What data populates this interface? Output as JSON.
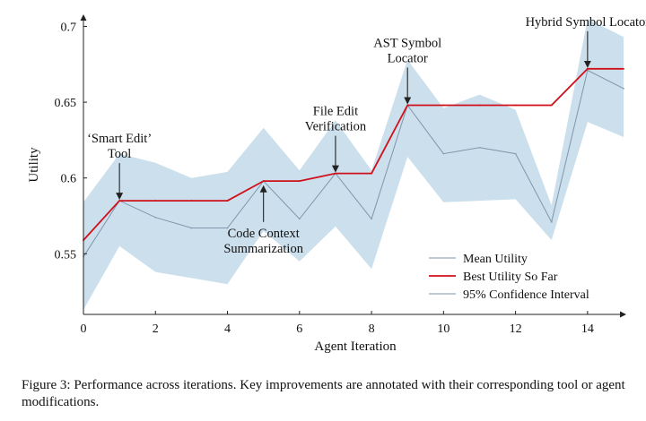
{
  "chart_data": {
    "type": "line",
    "xlabel": "Agent Iteration",
    "ylabel": "Utility",
    "xlim": [
      0,
      15
    ],
    "ylim": [
      0.51,
      0.705
    ],
    "xticks": [
      0,
      2,
      4,
      6,
      8,
      10,
      12,
      14
    ],
    "xtick_labels": [
      "0",
      "2",
      "4",
      "6",
      "8",
      "10",
      "12",
      "14"
    ],
    "yticks": [
      0.55,
      0.6,
      0.65,
      0.7
    ],
    "ytick_labels": [
      "0.55",
      "0.6",
      "0.65",
      "0.7"
    ],
    "grid": false,
    "legend_position": "bottom-right",
    "x": [
      0,
      1,
      2,
      3,
      4,
      5,
      6,
      7,
      8,
      9,
      10,
      11,
      12,
      13,
      14,
      15
    ],
    "series": [
      {
        "name": "Mean Utility",
        "role": "mean",
        "color": "#8096aa",
        "values": [
          0.548,
          0.585,
          0.574,
          0.567,
          0.567,
          0.598,
          0.573,
          0.603,
          0.573,
          0.648,
          0.616,
          0.62,
          0.616,
          0.571,
          0.671,
          0.659
        ]
      },
      {
        "name": "Best Utility So Far",
        "role": "best",
        "color": "#d0101a",
        "values": [
          0.559,
          0.585,
          0.585,
          0.585,
          0.585,
          0.598,
          0.598,
          0.603,
          0.603,
          0.648,
          0.648,
          0.648,
          0.648,
          0.648,
          0.672,
          0.672
        ]
      },
      {
        "name": "95% Confidence Interval",
        "role": "ci",
        "color": "#c5dbea",
        "lower": [
          0.513,
          0.555,
          0.538,
          0.534,
          0.53,
          0.565,
          0.545,
          0.568,
          0.54,
          0.614,
          0.584,
          0.585,
          0.586,
          0.559,
          0.637,
          0.627
        ],
        "upper": [
          0.584,
          0.616,
          0.61,
          0.6,
          0.604,
          0.633,
          0.605,
          0.638,
          0.605,
          0.678,
          0.646,
          0.655,
          0.645,
          0.582,
          0.705,
          0.693
        ]
      }
    ],
    "annotations": [
      {
        "lines": [
          "‘Smart Edit’",
          "Tool"
        ],
        "x": 1,
        "y": 0.585,
        "placement": "above"
      },
      {
        "lines": [
          "Code Context",
          "Summarization"
        ],
        "x": 5,
        "y": 0.597,
        "placement": "below"
      },
      {
        "lines": [
          "File Edit",
          "Verification"
        ],
        "x": 7,
        "y": 0.603,
        "placement": "above"
      },
      {
        "lines": [
          "AST Symbol",
          "Locator"
        ],
        "x": 9,
        "y": 0.648,
        "placement": "above"
      },
      {
        "lines": [
          "Hybrid Symbol Locator"
        ],
        "x": 14,
        "y": 0.672,
        "placement": "above"
      }
    ]
  },
  "caption": "Figure 3: Performance across iterations. Key improvements are annotated with their corresponding tool or agent modifications."
}
